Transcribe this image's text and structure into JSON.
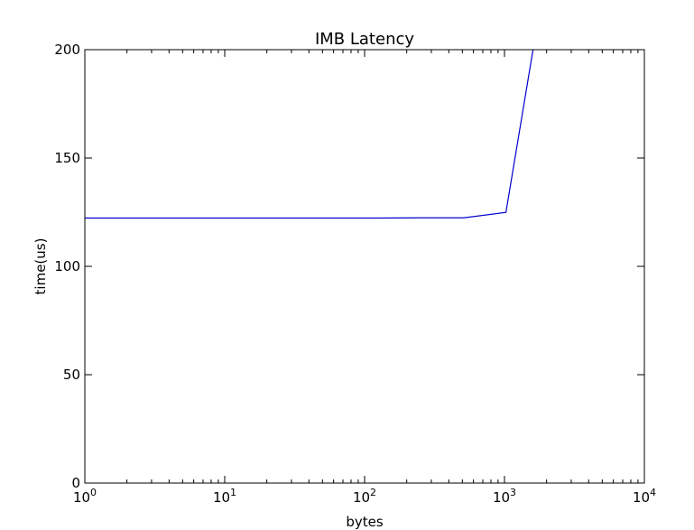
{
  "chart_data": {
    "type": "line",
    "title": "IMB Latency",
    "xlabel": "bytes",
    "ylabel": "time(us)",
    "xscale": "log",
    "xlim": [
      1,
      10000
    ],
    "ylim": [
      0,
      200
    ],
    "grid": false,
    "x_ticks": [
      {
        "base": "10",
        "exp": "0",
        "value": 1
      },
      {
        "base": "10",
        "exp": "1",
        "value": 10
      },
      {
        "base": "10",
        "exp": "2",
        "value": 100
      },
      {
        "base": "10",
        "exp": "3",
        "value": 1000
      },
      {
        "base": "10",
        "exp": "4",
        "value": 10000
      }
    ],
    "y_ticks": [
      {
        "label": "0",
        "value": 0
      },
      {
        "label": "50",
        "value": 50
      },
      {
        "label": "100",
        "value": 100
      },
      {
        "label": "150",
        "value": 150
      },
      {
        "label": "200",
        "value": 200
      }
    ],
    "series": [
      {
        "color": "#0000cc",
        "x": [
          1,
          2,
          4,
          8,
          16,
          32,
          64,
          128,
          256,
          512,
          1024,
          1600
        ],
        "y": [
          122.3,
          122.3,
          122.3,
          122.3,
          122.3,
          122.3,
          122.3,
          122.3,
          122.4,
          122.4,
          124.9,
          200
        ]
      }
    ]
  }
}
